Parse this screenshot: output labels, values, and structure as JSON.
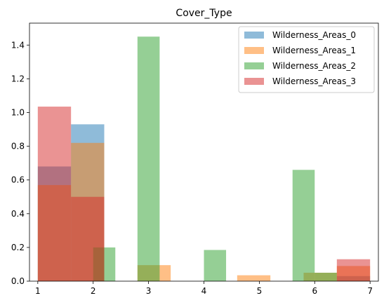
{
  "chart_data": {
    "type": "bar",
    "title": "Cover_Type",
    "xlabel": "",
    "ylabel": "",
    "xlim": [
      0.85,
      7.15
    ],
    "ylim": [
      0,
      1.53
    ],
    "x_ticks": [
      1,
      2,
      3,
      4,
      5,
      6,
      7
    ],
    "x_tick_labels": [
      "1",
      "2",
      "3",
      "4",
      "5",
      "6",
      "7"
    ],
    "y_ticks": [
      0.0,
      0.2,
      0.4,
      0.6,
      0.8,
      1.0,
      1.2,
      1.4
    ],
    "y_tick_labels": [
      "0.0",
      "0.2",
      "0.4",
      "0.6",
      "0.8",
      "1.0",
      "1.2",
      "1.4"
    ],
    "grid": false,
    "legend_position": "top-right",
    "bar_alpha": 0.5,
    "series": [
      {
        "name": "Wilderness_Areas_0",
        "color": "#1f77b4",
        "bars": [
          {
            "x0": 1.0,
            "x1": 1.6,
            "value": 0.68
          },
          {
            "x0": 1.6,
            "x1": 2.2,
            "value": 0.93
          },
          {
            "x0": 6.4,
            "x1": 7.0,
            "value": 0.03
          }
        ]
      },
      {
        "name": "Wilderness_Areas_1",
        "color": "#ff7f0e",
        "bars": [
          {
            "x0": 1.0,
            "x1": 1.6,
            "value": 0.57
          },
          {
            "x0": 1.6,
            "x1": 2.2,
            "value": 0.82
          },
          {
            "x0": 2.8,
            "x1": 3.4,
            "value": 0.095
          },
          {
            "x0": 4.6,
            "x1": 5.2,
            "value": 0.035
          },
          {
            "x0": 5.8,
            "x1": 6.4,
            "value": 0.05
          },
          {
            "x0": 6.4,
            "x1": 7.0,
            "value": 0.09
          }
        ]
      },
      {
        "name": "Wilderness_Areas_2",
        "color": "#2ca02c",
        "bars": [
          {
            "x0": 2.0,
            "x1": 2.4,
            "value": 0.2
          },
          {
            "x0": 2.8,
            "x1": 3.2,
            "value": 1.45
          },
          {
            "x0": 4.0,
            "x1": 4.4,
            "value": 0.185
          },
          {
            "x0": 5.6,
            "x1": 6.0,
            "value": 0.66
          },
          {
            "x0": 6.0,
            "x1": 6.4,
            "value": 0.05
          }
        ]
      },
      {
        "name": "Wilderness_Areas_3",
        "color": "#d62728",
        "bars": [
          {
            "x0": 1.0,
            "x1": 1.6,
            "value": 1.035
          },
          {
            "x0": 1.6,
            "x1": 2.2,
            "value": 0.5
          },
          {
            "x0": 6.4,
            "x1": 7.0,
            "value": 0.13
          }
        ]
      }
    ]
  }
}
